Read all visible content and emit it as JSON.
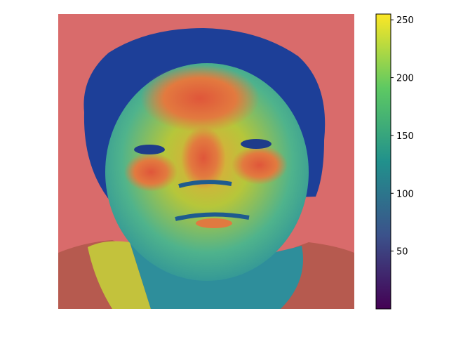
{
  "chart_data": {
    "type": "heatmap",
    "title": "",
    "xlabel": "",
    "ylabel": "",
    "axes_visible": false,
    "grid": false,
    "background_overlay_color": "#d96b6b",
    "image_content": "grayscale face intensity map rendered with viridis-like colormap",
    "colorbar": {
      "location": "right",
      "colormap": "viridis",
      "range": [
        0,
        255
      ],
      "ticks": [
        50,
        100,
        150,
        200,
        250
      ],
      "tick_labels": [
        "50",
        "100",
        "150",
        "200",
        "250"
      ],
      "stops": [
        "#440154",
        "#3b528b",
        "#21918c",
        "#5ec962",
        "#fde725"
      ]
    }
  }
}
